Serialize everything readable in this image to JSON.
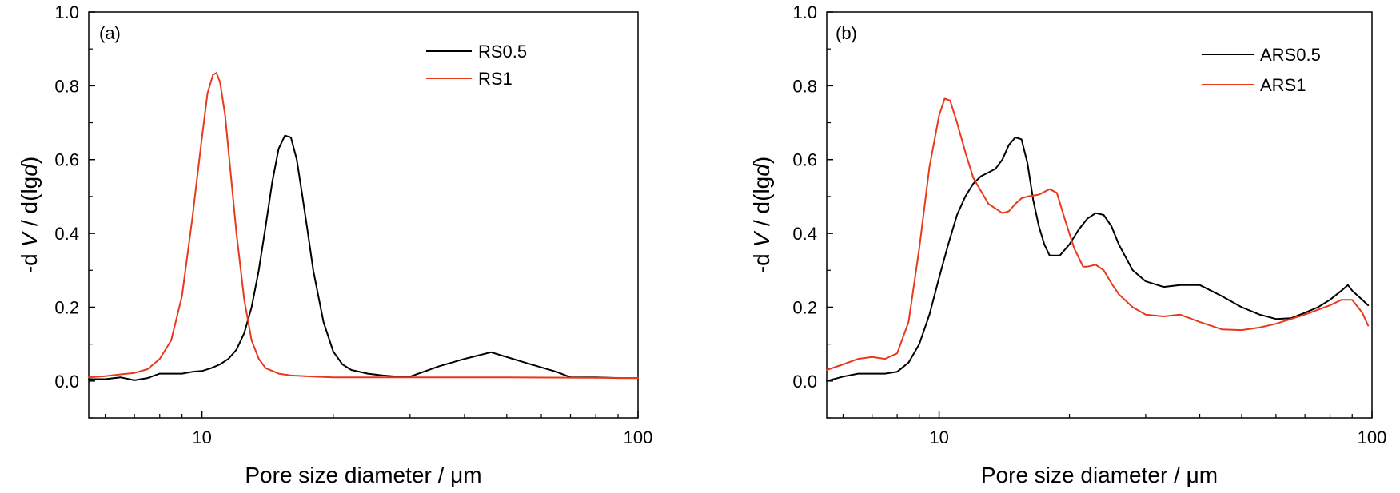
{
  "chart_data": [
    {
      "type": "line",
      "panel_label": "(a)",
      "xlabel": "Pore size diameter / μm",
      "ylabel_parts": [
        "-d ",
        "V",
        " / d(lg",
        "d",
        ")"
      ],
      "xscale": "log",
      "xlim": [
        5.5,
        100
      ],
      "ylim": [
        -0.1,
        1.0
      ],
      "x_ticks": [
        10,
        100
      ],
      "x_tick_labels": [
        "10",
        "100"
      ],
      "y_ticks": [
        0.0,
        0.2,
        0.4,
        0.6,
        0.8,
        1.0
      ],
      "y_tick_labels": [
        "0.0",
        "0.2",
        "0.4",
        "0.6",
        "0.8",
        "1.0"
      ],
      "legend_position": "top-right",
      "series": [
        {
          "name": "RS0.5",
          "color": "#000000",
          "x": [
            5.5,
            6.0,
            6.5,
            7.0,
            7.5,
            8.0,
            8.5,
            9.0,
            9.5,
            10.0,
            10.5,
            11.0,
            11.5,
            12.0,
            12.5,
            13.0,
            13.5,
            14.0,
            14.5,
            15.0,
            15.5,
            16.0,
            16.5,
            17.0,
            17.5,
            18.0,
            19.0,
            20.0,
            21.0,
            22.0,
            24.0,
            26.0,
            28.0,
            30.0,
            35.0,
            40.0,
            46.0,
            55.0,
            65.0,
            70.0,
            80.0,
            90.0,
            100.0
          ],
          "y": [
            0.005,
            0.005,
            0.01,
            0.002,
            0.008,
            0.02,
            0.02,
            0.02,
            0.025,
            0.027,
            0.035,
            0.045,
            0.06,
            0.085,
            0.13,
            0.2,
            0.3,
            0.42,
            0.54,
            0.63,
            0.665,
            0.66,
            0.6,
            0.5,
            0.4,
            0.3,
            0.16,
            0.08,
            0.045,
            0.03,
            0.02,
            0.015,
            0.012,
            0.012,
            0.04,
            0.06,
            0.078,
            0.05,
            0.025,
            0.01,
            0.01,
            0.008,
            0.008
          ]
        },
        {
          "name": "RS1",
          "color": "#e8391c",
          "x": [
            5.5,
            6.0,
            6.5,
            7.0,
            7.5,
            8.0,
            8.5,
            9.0,
            9.5,
            10.0,
            10.3,
            10.6,
            10.8,
            11.0,
            11.3,
            11.6,
            12.0,
            12.5,
            13.0,
            13.5,
            14.0,
            15.0,
            16.0,
            18.0,
            20.0,
            30.0,
            50.0,
            100.0
          ],
          "y": [
            0.01,
            0.013,
            0.018,
            0.022,
            0.032,
            0.06,
            0.11,
            0.23,
            0.44,
            0.66,
            0.78,
            0.83,
            0.835,
            0.81,
            0.72,
            0.58,
            0.4,
            0.22,
            0.11,
            0.06,
            0.035,
            0.02,
            0.015,
            0.012,
            0.01,
            0.01,
            0.01,
            0.008
          ]
        }
      ]
    },
    {
      "type": "line",
      "panel_label": "(b)",
      "xlabel": "Pore size diameter / μm",
      "ylabel_parts": [
        "-d ",
        "V",
        " / d(lg",
        "d",
        ")"
      ],
      "xscale": "log",
      "xlim": [
        5.5,
        100
      ],
      "ylim": [
        -0.1,
        1.0
      ],
      "x_ticks": [
        10,
        100
      ],
      "x_tick_labels": [
        "10",
        "100"
      ],
      "y_ticks": [
        0.0,
        0.2,
        0.4,
        0.6,
        0.8,
        1.0
      ],
      "y_tick_labels": [
        "0.0",
        "0.2",
        "0.4",
        "0.6",
        "0.8",
        "1.0"
      ],
      "legend_position": "top-right",
      "series": [
        {
          "name": "ARS0.5",
          "color": "#000000",
          "x": [
            5.5,
            6.0,
            6.5,
            7.0,
            7.5,
            8.0,
            8.5,
            9.0,
            9.5,
            10.0,
            10.5,
            11.0,
            11.5,
            12.0,
            12.5,
            13.0,
            13.5,
            14.0,
            14.5,
            15.0,
            15.5,
            16.0,
            16.5,
            17.0,
            17.5,
            18.0,
            19.0,
            20.0,
            21.0,
            22.0,
            23.0,
            24.0,
            25.0,
            26.0,
            28.0,
            30.0,
            33.0,
            36.0,
            40.0,
            45.0,
            50.0,
            55.0,
            60.0,
            65.0,
            70.0,
            75.0,
            80.0,
            85.0,
            88.0,
            90.0,
            95.0,
            98.0
          ],
          "y": [
            0.0,
            0.012,
            0.02,
            0.02,
            0.02,
            0.025,
            0.05,
            0.1,
            0.18,
            0.28,
            0.37,
            0.45,
            0.5,
            0.535,
            0.555,
            0.565,
            0.575,
            0.6,
            0.64,
            0.66,
            0.655,
            0.59,
            0.49,
            0.42,
            0.37,
            0.34,
            0.34,
            0.37,
            0.41,
            0.44,
            0.455,
            0.45,
            0.42,
            0.37,
            0.3,
            0.27,
            0.255,
            0.26,
            0.26,
            0.23,
            0.2,
            0.18,
            0.168,
            0.17,
            0.185,
            0.2,
            0.22,
            0.245,
            0.26,
            0.245,
            0.22,
            0.205
          ]
        },
        {
          "name": "ARS1",
          "color": "#e8391c",
          "x": [
            5.5,
            6.0,
            6.5,
            7.0,
            7.5,
            8.0,
            8.5,
            9.0,
            9.5,
            10.0,
            10.3,
            10.6,
            11.0,
            11.5,
            12.0,
            13.0,
            14.0,
            14.5,
            15.0,
            15.5,
            16.0,
            17.0,
            18.0,
            18.7,
            19.5,
            20.5,
            21.5,
            22.0,
            23.0,
            24.0,
            25.0,
            26.0,
            28.0,
            30.0,
            33.0,
            36.0,
            40.0,
            45.0,
            50.0,
            55.0,
            60.0,
            70.0,
            80.0,
            85.0,
            90.0,
            95.0,
            98.0
          ],
          "y": [
            0.03,
            0.045,
            0.06,
            0.065,
            0.06,
            0.075,
            0.16,
            0.36,
            0.58,
            0.72,
            0.765,
            0.76,
            0.7,
            0.62,
            0.55,
            0.48,
            0.455,
            0.46,
            0.48,
            0.495,
            0.5,
            0.505,
            0.52,
            0.51,
            0.44,
            0.36,
            0.31,
            0.31,
            0.315,
            0.3,
            0.265,
            0.235,
            0.2,
            0.18,
            0.175,
            0.18,
            0.16,
            0.14,
            0.138,
            0.145,
            0.155,
            0.18,
            0.205,
            0.22,
            0.22,
            0.185,
            0.15
          ]
        }
      ]
    }
  ]
}
